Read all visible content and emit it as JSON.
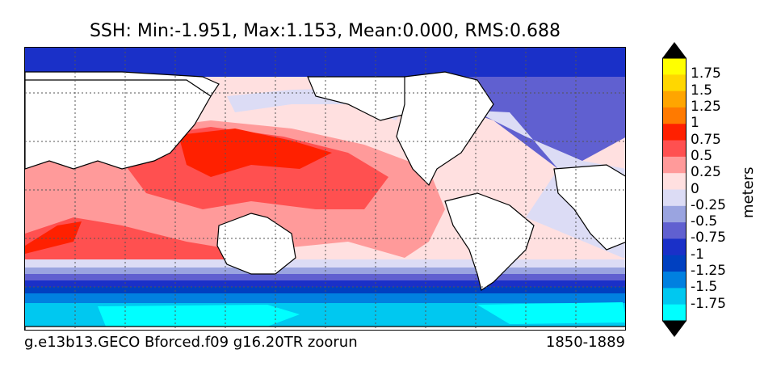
{
  "title": "SSH: Min:-1.951, Max:1.153, Mean:0.000, RMS:0.688",
  "footer": {
    "case_name": "g.e13b13.GECO Bforced.f09 g16.20TR zoorun",
    "years": "1850-1889"
  },
  "colorbar": {
    "units": "meters",
    "labels": [
      "1.75",
      "1.5",
      "1.25",
      "1",
      "0.75",
      "0.5",
      "0.25",
      "0",
      "-0.25",
      "-0.5",
      "-0.75",
      "-1",
      "-1.25",
      "-1.5",
      "-1.75"
    ],
    "colors": [
      "#ffff00",
      "#ffd700",
      "#ffa500",
      "#ff7a00",
      "#ff2000",
      "#ff5050",
      "#ff9a9a",
      "#ffe0e0",
      "#dcdcf5",
      "#9aa4e0",
      "#6060d0",
      "#1a30c8",
      "#0040c0",
      "#0080e0",
      "#00c8f0",
      "#00ffff"
    ],
    "extend_top_color": "#000000",
    "extend_bottom_color": "#000000"
  }
}
